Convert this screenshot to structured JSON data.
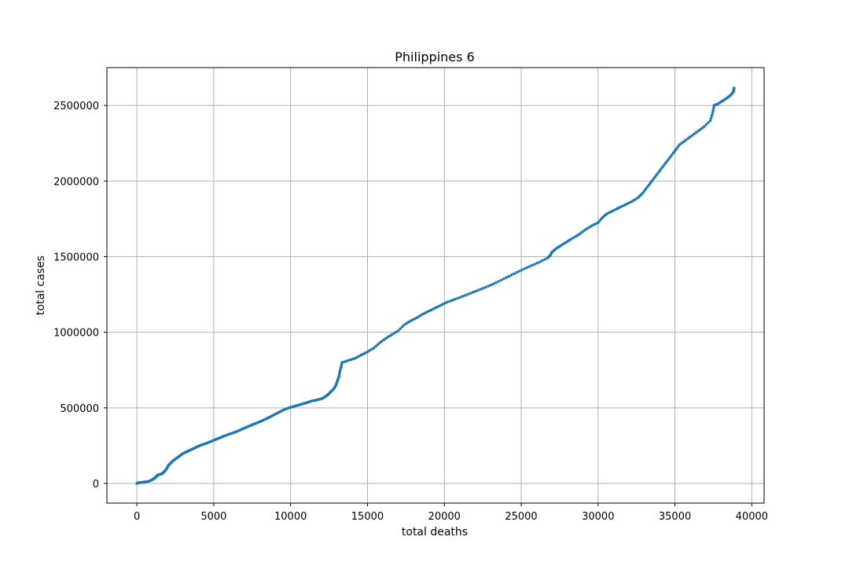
{
  "chart_data": {
    "type": "scatter",
    "title": "Philippines 6",
    "xlabel": "total deaths",
    "ylabel": "total cases",
    "xlim": [
      -1950,
      40800
    ],
    "ylim": [
      -130000,
      2750000
    ],
    "xticks": [
      0,
      5000,
      10000,
      15000,
      20000,
      25000,
      30000,
      35000,
      40000
    ],
    "xtick_labels": [
      "0",
      "5000",
      "10000",
      "15000",
      "20000",
      "25000",
      "30000",
      "35000",
      "40000"
    ],
    "yticks": [
      0,
      500000,
      1000000,
      1500000,
      2000000,
      2500000
    ],
    "ytick_labels": [
      "0",
      "500000",
      "1000000",
      "1500000",
      "2000000",
      "2500000"
    ],
    "grid": true,
    "marker_color": "#1f77b4",
    "series": [
      {
        "name": "",
        "points": [
          [
            0,
            0
          ],
          [
            50,
            3000
          ],
          [
            150,
            5000
          ],
          [
            300,
            7000
          ],
          [
            450,
            9000
          ],
          [
            600,
            11000
          ],
          [
            800,
            15000
          ],
          [
            1000,
            25000
          ],
          [
            1150,
            35000
          ],
          [
            1250,
            45000
          ],
          [
            1350,
            55000
          ],
          [
            1500,
            60000
          ],
          [
            1650,
            65000
          ],
          [
            1800,
            80000
          ],
          [
            1950,
            100000
          ],
          [
            2050,
            120000
          ],
          [
            2200,
            135000
          ],
          [
            2350,
            150000
          ],
          [
            2550,
            165000
          ],
          [
            2750,
            180000
          ],
          [
            2950,
            195000
          ],
          [
            3200,
            208000
          ],
          [
            3450,
            220000
          ],
          [
            3700,
            232000
          ],
          [
            3950,
            244000
          ],
          [
            4200,
            255000
          ],
          [
            4500,
            265000
          ],
          [
            4800,
            277000
          ],
          [
            5100,
            290000
          ],
          [
            5400,
            302000
          ],
          [
            5700,
            315000
          ],
          [
            6000,
            326000
          ],
          [
            6300,
            336000
          ],
          [
            6600,
            348000
          ],
          [
            6900,
            362000
          ],
          [
            7200,
            375000
          ],
          [
            7500,
            388000
          ],
          [
            7800,
            400000
          ],
          [
            8100,
            413000
          ],
          [
            8400,
            427000
          ],
          [
            8700,
            442000
          ],
          [
            9000,
            458000
          ],
          [
            9300,
            474000
          ],
          [
            9600,
            489000
          ],
          [
            9900,
            500000
          ],
          [
            10200,
            509000
          ],
          [
            10500,
            518000
          ],
          [
            10800,
            527000
          ],
          [
            11100,
            536000
          ],
          [
            11400,
            546000
          ],
          [
            11700,
            552000
          ],
          [
            12000,
            560000
          ],
          [
            12200,
            570000
          ],
          [
            12400,
            585000
          ],
          [
            12600,
            605000
          ],
          [
            12800,
            625000
          ],
          [
            12950,
            650000
          ],
          [
            13050,
            680000
          ],
          [
            13150,
            710000
          ],
          [
            13200,
            740000
          ],
          [
            13280,
            770000
          ],
          [
            13350,
            800000
          ],
          [
            13800,
            815000
          ],
          [
            14200,
            828000
          ],
          [
            14600,
            850000
          ],
          [
            15000,
            870000
          ],
          [
            15400,
            895000
          ],
          [
            15800,
            930000
          ],
          [
            16200,
            960000
          ],
          [
            16600,
            985000
          ],
          [
            17000,
            1010000
          ],
          [
            17400,
            1050000
          ],
          [
            17800,
            1075000
          ],
          [
            18200,
            1095000
          ],
          [
            18600,
            1120000
          ],
          [
            19000,
            1140000
          ],
          [
            19400,
            1160000
          ],
          [
            19800,
            1180000
          ],
          [
            20200,
            1200000
          ],
          [
            20700,
            1218000
          ],
          [
            21200,
            1238000
          ],
          [
            21700,
            1258000
          ],
          [
            22200,
            1278000
          ],
          [
            22700,
            1298000
          ],
          [
            23200,
            1320000
          ],
          [
            23700,
            1345000
          ],
          [
            24200,
            1370000
          ],
          [
            24700,
            1395000
          ],
          [
            25200,
            1420000
          ],
          [
            25700,
            1442000
          ],
          [
            26200,
            1465000
          ],
          [
            26700,
            1490000
          ],
          [
            26900,
            1510000
          ],
          [
            27000,
            1530000
          ],
          [
            27300,
            1555000
          ],
          [
            27600,
            1575000
          ],
          [
            28000,
            1600000
          ],
          [
            28400,
            1625000
          ],
          [
            28800,
            1650000
          ],
          [
            29200,
            1680000
          ],
          [
            29600,
            1705000
          ],
          [
            30000,
            1725000
          ],
          [
            30300,
            1760000
          ],
          [
            30600,
            1785000
          ],
          [
            31000,
            1805000
          ],
          [
            31400,
            1825000
          ],
          [
            31800,
            1845000
          ],
          [
            32200,
            1865000
          ],
          [
            32600,
            1890000
          ],
          [
            32900,
            1920000
          ],
          [
            33200,
            1960000
          ],
          [
            33500,
            2000000
          ],
          [
            33800,
            2040000
          ],
          [
            34100,
            2080000
          ],
          [
            34400,
            2120000
          ],
          [
            34700,
            2160000
          ],
          [
            35000,
            2200000
          ],
          [
            35300,
            2240000
          ],
          [
            35700,
            2270000
          ],
          [
            36100,
            2300000
          ],
          [
            36500,
            2330000
          ],
          [
            36900,
            2360000
          ],
          [
            37300,
            2400000
          ],
          [
            37450,
            2450000
          ],
          [
            37550,
            2500000
          ],
          [
            37800,
            2510000
          ],
          [
            38100,
            2530000
          ],
          [
            38400,
            2550000
          ],
          [
            38650,
            2570000
          ],
          [
            38800,
            2590000
          ],
          [
            38850,
            2615000
          ]
        ]
      }
    ]
  }
}
